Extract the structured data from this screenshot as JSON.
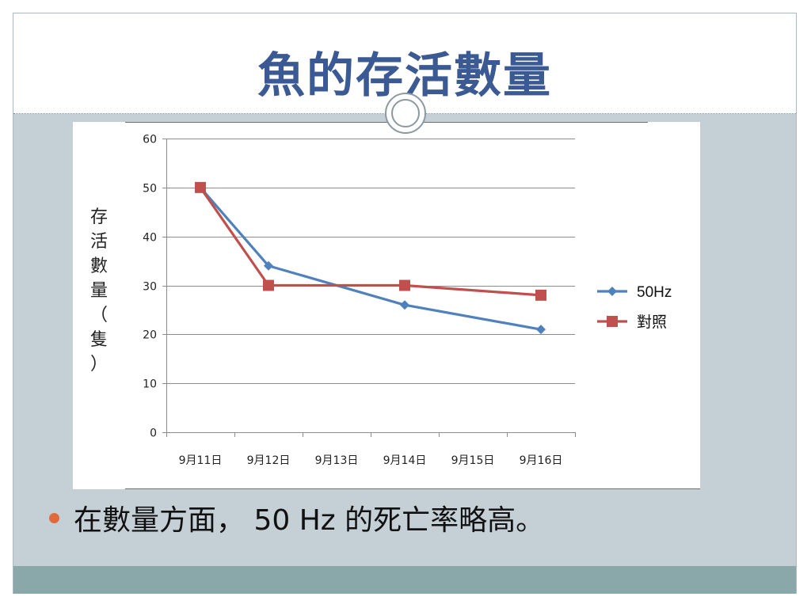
{
  "slide": {
    "title": "魚的存活數量",
    "bullet": "在數量方面， 50 Hz 的死亡率略高。"
  },
  "colors": {
    "title": "#3b5a93",
    "bullet_dot": "#e06a3c",
    "content_bg": "#c5d0d6",
    "footer_band": "#8aa7a9"
  },
  "chart_data": {
    "type": "line",
    "title": "",
    "xlabel": "",
    "ylabel": "存活數量（隻）",
    "categories": [
      "9月11日",
      "9月12日",
      "9月13日",
      "9月14日",
      "9月15日",
      "9月16日"
    ],
    "ylim": [
      0,
      60
    ],
    "yticks": [
      0,
      10,
      20,
      30,
      40,
      50,
      60
    ],
    "grid": "horizontal",
    "legend_position": "right",
    "series": [
      {
        "name": "50Hz",
        "color": "#4f81bd",
        "marker": "diamond",
        "points": [
          {
            "x": "9月11日",
            "y": 50
          },
          {
            "x": "9月12日",
            "y": 34
          },
          {
            "x": "9月14日",
            "y": 26
          },
          {
            "x": "9月16日",
            "y": 21
          }
        ]
      },
      {
        "name": "對照",
        "color": "#c0504d",
        "marker": "square",
        "points": [
          {
            "x": "9月11日",
            "y": 50
          },
          {
            "x": "9月12日",
            "y": 30
          },
          {
            "x": "9月14日",
            "y": 30
          },
          {
            "x": "9月16日",
            "y": 28
          }
        ]
      }
    ]
  }
}
